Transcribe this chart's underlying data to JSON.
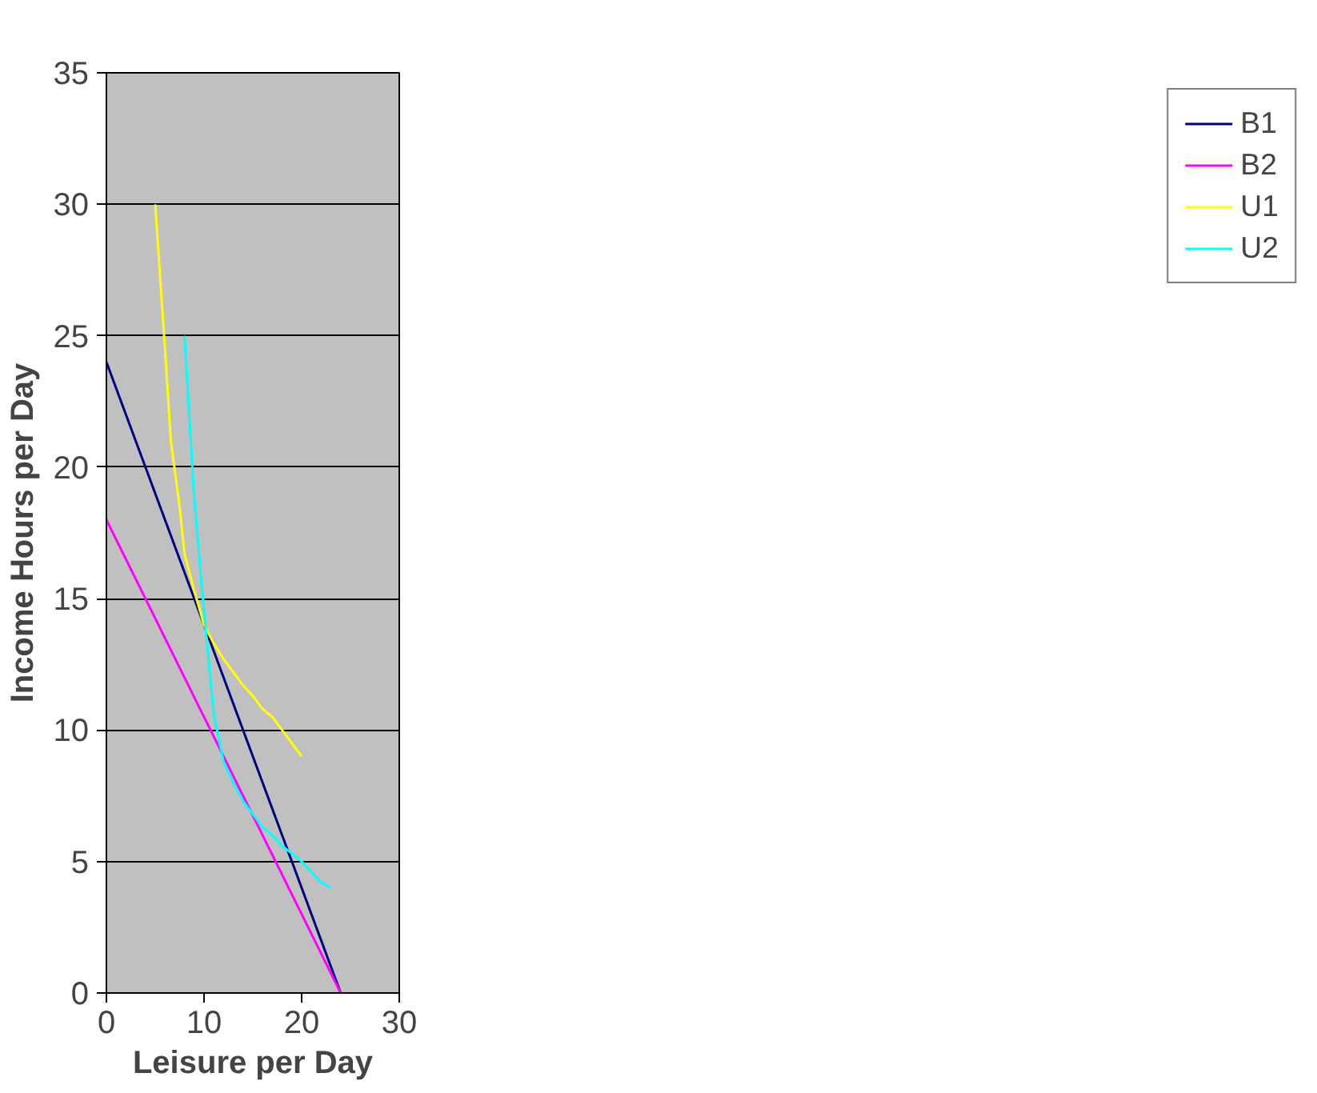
{
  "chart_data": {
    "type": "line",
    "xlabel": "Leisure per Day",
    "ylabel": "Income Hours per Day",
    "xlim": [
      0,
      30
    ],
    "ylim": [
      0,
      35
    ],
    "xticks": [
      0,
      10,
      20,
      30
    ],
    "yticks": [
      0,
      5,
      10,
      15,
      20,
      25,
      30,
      35
    ],
    "grid": "y",
    "legend": "right",
    "marker": "none",
    "line_style": "solid",
    "series": [
      {
        "name": "B1",
        "color": "#000080",
        "x": [
          0,
          24
        ],
        "values": [
          24,
          0
        ]
      },
      {
        "name": "B2",
        "color": "#ff00ff",
        "x": [
          0,
          24
        ],
        "values": [
          18,
          0
        ]
      },
      {
        "name": "U1",
        "color": "#ffff00",
        "x": [
          5,
          6,
          6.6,
          7.5,
          8,
          9,
          10,
          11,
          12,
          13,
          14,
          15,
          16,
          17,
          18,
          19,
          20
        ],
        "values": [
          30,
          24.5,
          21,
          18.5,
          16.7,
          15.3,
          14,
          13.3,
          12.7,
          12.2,
          11.7,
          11.3,
          10.8,
          10.5,
          10,
          9.5,
          9
        ]
      },
      {
        "name": "U2",
        "color": "#00ffff",
        "x": [
          8,
          9,
          10,
          11,
          12,
          13,
          14,
          15,
          16,
          17,
          18,
          19,
          20,
          21,
          22,
          23
        ],
        "values": [
          25,
          18.8,
          14.5,
          10.6,
          8.8,
          8,
          7.3,
          6.8,
          6.3,
          6,
          5.6,
          5.3,
          5,
          4.6,
          4.2,
          4
        ]
      }
    ]
  }
}
